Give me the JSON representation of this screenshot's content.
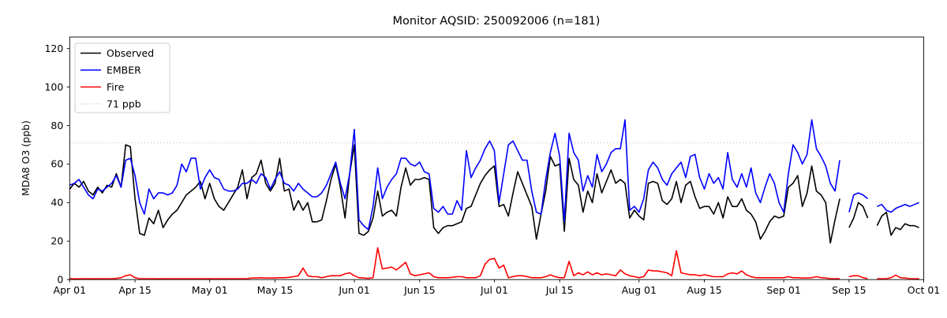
{
  "title": "Monitor AQSID: 250092006 (n=181)",
  "chart_data": {
    "type": "line",
    "title": "Monitor AQSID: 250092006 (n=181)",
    "xlabel": "",
    "ylabel": "MDA8 O3 (ppb)",
    "ylim": [
      0,
      126
    ],
    "yticks": [
      0,
      20,
      40,
      60,
      80,
      100,
      120
    ],
    "grid": false,
    "legend_position": "upper-left",
    "x_days_total": 183,
    "x_start_label": "Apr 01",
    "xticks": {
      "labels": [
        "Apr 01",
        "Apr 15",
        "May 01",
        "May 15",
        "Jun 01",
        "Jun 15",
        "Jul 01",
        "Jul 15",
        "Aug 01",
        "Aug 15",
        "Sep 01",
        "Sep 15",
        "Oct 01"
      ],
      "day_index": [
        0,
        14,
        30,
        44,
        61,
        75,
        91,
        105,
        122,
        136,
        153,
        167,
        183
      ]
    },
    "threshold": {
      "label": "71 ppb",
      "value": 71,
      "color": "#d3d3d3",
      "style": "dotted"
    },
    "colors": {
      "observed": "#000000",
      "ember": "#0000ff",
      "fire": "#ff0000"
    },
    "series": [
      {
        "name": "Observed",
        "color": "#000000",
        "values": [
          47,
          50,
          48,
          51,
          46,
          44,
          48,
          45,
          49,
          48,
          55,
          48,
          70,
          69,
          42,
          24,
          23,
          32,
          29,
          36,
          27,
          31,
          34,
          36,
          40,
          44,
          46,
          48,
          51,
          42,
          50,
          42,
          38,
          36,
          40,
          44,
          48,
          57,
          42,
          53,
          55,
          62,
          50,
          46,
          50,
          63,
          46,
          47,
          36,
          41,
          36,
          40,
          30,
          30,
          31,
          41,
          52,
          60,
          48,
          32,
          55,
          70,
          24,
          23,
          25,
          32,
          46,
          33,
          35,
          36,
          33,
          48,
          58,
          49,
          52,
          52,
          53,
          52,
          27,
          24,
          27,
          28,
          28,
          29,
          30,
          37,
          38,
          44,
          50,
          54,
          57,
          59,
          38,
          39,
          33,
          45,
          56,
          50,
          44,
          38,
          21,
          34,
          46,
          64,
          59,
          60,
          25,
          63,
          52,
          49,
          35,
          46,
          40,
          55,
          45,
          51,
          57,
          50,
          52,
          50,
          32,
          36,
          33,
          31,
          50,
          51,
          50,
          41,
          39,
          42,
          51,
          40,
          49,
          51,
          43,
          37,
          38,
          38,
          34,
          40,
          32,
          43,
          38,
          38,
          42,
          36,
          34,
          30,
          21,
          25,
          30,
          33,
          32,
          33,
          48,
          50,
          54,
          38,
          45,
          59,
          46,
          44,
          40,
          19,
          31,
          42,
          null,
          27,
          32,
          40,
          38,
          32,
          null,
          28,
          33,
          35,
          23,
          27,
          26,
          29,
          28,
          28,
          27
        ]
      },
      {
        "name": "EMBER",
        "color": "#0000ff",
        "values": [
          49,
          50,
          52,
          48,
          44,
          42,
          47,
          46,
          48,
          50,
          54,
          48,
          62,
          63,
          54,
          40,
          34,
          47,
          42,
          45,
          45,
          44,
          45,
          49,
          60,
          56,
          63,
          63,
          47,
          53,
          57,
          53,
          52,
          47,
          46,
          46,
          47,
          50,
          50,
          52,
          50,
          55,
          53,
          47,
          52,
          56,
          50,
          49,
          46,
          50,
          47,
          45,
          43,
          43,
          45,
          49,
          55,
          61,
          50,
          42,
          55,
          78,
          31,
          28,
          26,
          38,
          58,
          42,
          48,
          52,
          55,
          63,
          63,
          60,
          59,
          61,
          56,
          55,
          37,
          35,
          38,
          34,
          34,
          41,
          36,
          67,
          53,
          58,
          62,
          68,
          72,
          67,
          40,
          55,
          70,
          72,
          67,
          62,
          62,
          46,
          35,
          34,
          52,
          66,
          76,
          64,
          30,
          76,
          66,
          62,
          46,
          54,
          48,
          65,
          56,
          60,
          66,
          68,
          68,
          83,
          36,
          38,
          35,
          42,
          57,
          61,
          58,
          52,
          49,
          55,
          58,
          61,
          53,
          64,
          65,
          53,
          47,
          55,
          50,
          53,
          47,
          66,
          52,
          48,
          55,
          48,
          58,
          45,
          40,
          48,
          55,
          50,
          40,
          35,
          55,
          70,
          66,
          60,
          65,
          83,
          68,
          64,
          59,
          50,
          46,
          62,
          null,
          35,
          44,
          45,
          44,
          42,
          null,
          38,
          39,
          36,
          35,
          37,
          38,
          39,
          38,
          39,
          40
        ]
      },
      {
        "name": "Fire",
        "color": "#ff0000",
        "values": [
          0.5,
          0.4,
          0.4,
          0.5,
          0.5,
          0.4,
          0.5,
          0.5,
          0.5,
          0.5,
          0.6,
          1,
          2,
          2.5,
          1,
          0.5,
          0.5,
          0.5,
          0.5,
          0.4,
          0.5,
          0.5,
          0.5,
          0.5,
          0.5,
          0.5,
          0.5,
          0.5,
          0.5,
          0.5,
          0.5,
          0.5,
          0.5,
          0.5,
          0.5,
          0.5,
          0.5,
          0.5,
          0.5,
          0.8,
          0.8,
          1,
          0.8,
          0.8,
          0.8,
          1,
          1,
          1.2,
          1.5,
          2,
          6,
          2,
          1.5,
          1.5,
          1,
          1.5,
          2,
          2,
          2,
          3,
          3.5,
          2,
          1,
          0.8,
          0.6,
          1,
          16.5,
          5.5,
          6,
          6.5,
          5,
          7,
          9,
          3,
          2,
          2.5,
          3,
          3.5,
          1.5,
          1,
          1,
          1,
          1.2,
          1.5,
          1.5,
          1,
          1,
          1,
          2,
          8,
          10.5,
          11,
          6,
          7.5,
          1,
          1.5,
          2,
          2,
          1.5,
          1,
          1,
          1,
          1.5,
          2.5,
          1.5,
          1,
          1,
          9.5,
          2,
          3.5,
          2.5,
          4,
          2.5,
          3.5,
          2.5,
          3,
          2.5,
          2,
          5,
          3,
          2,
          1.5,
          1,
          1.5,
          5,
          4.5,
          4.5,
          4,
          3.5,
          2,
          15,
          3.5,
          3,
          2.5,
          2.5,
          2,
          2.5,
          2,
          1.5,
          1.5,
          1.5,
          3,
          3.5,
          3,
          4.5,
          2.5,
          1.5,
          1,
          1,
          1,
          1,
          1,
          1,
          1,
          1.5,
          1,
          1,
          0.8,
          0.8,
          1,
          1.5,
          1,
          0.8,
          0.5,
          0.5,
          0.5,
          null,
          1.5,
          2,
          2,
          1,
          0.5,
          null,
          0.5,
          0.5,
          0.5,
          1,
          2.3,
          1,
          0.8,
          0.5,
          0.5,
          0.4
        ]
      }
    ],
    "legend": [
      {
        "label": "Observed",
        "color": "#000000",
        "dash": "solid"
      },
      {
        "label": "EMBER",
        "color": "#0000ff",
        "dash": "solid"
      },
      {
        "label": "Fire",
        "color": "#ff0000",
        "dash": "solid"
      },
      {
        "label": "71 ppb",
        "color": "#d3d3d3",
        "dash": "dotted"
      }
    ]
  }
}
